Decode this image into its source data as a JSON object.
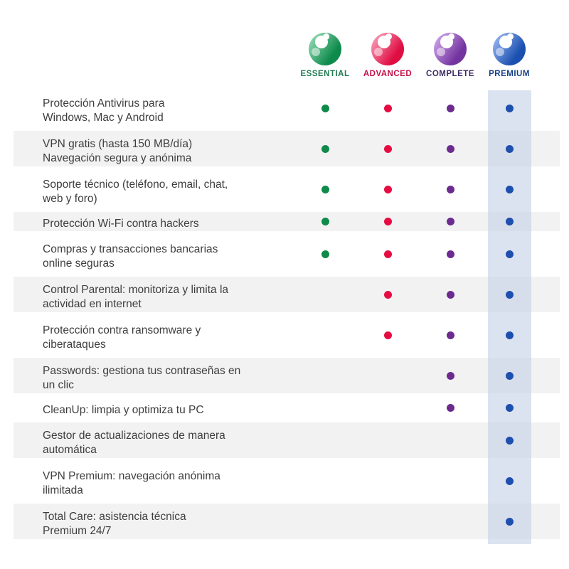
{
  "plans": [
    {
      "name": "ESSENTIAL",
      "label_color": "#237a52",
      "dot_color": "#0f8a4a",
      "logo_light": "#8ad5ac",
      "logo_dark": "#0e8a4c",
      "highlighted": false
    },
    {
      "name": "ADVANCED",
      "label_color": "#c51048",
      "dot_color": "#e60c42",
      "logo_light": "#f695b2",
      "logo_dark": "#e00d42",
      "highlighted": false
    },
    {
      "name": "COMPLETE",
      "label_color": "#3f2b63",
      "dot_color": "#6c2b8f",
      "logo_light": "#c99ee3",
      "logo_dark": "#7434a0",
      "highlighted": false
    },
    {
      "name": "PREMIUM",
      "label_color": "#174086",
      "dot_color": "#1d4fae",
      "logo_light": "#8fb0ec",
      "logo_dark": "#1c50b0",
      "highlighted": true
    }
  ],
  "highlight": {
    "plan": "PREMIUM",
    "band_color": "rgba(195,209,230,0.6)"
  },
  "table": {
    "row_shade_color": "#f2f2f2",
    "text_color": "#3e3e3e",
    "rows": [
      {
        "feature": "Protección Antivirus para\nWindows, Mac y Android",
        "included": [
          true,
          true,
          true,
          true
        ],
        "lines": 2,
        "shaded": false
      },
      {
        "feature": "VPN gratis (hasta 150 MB/día)\nNavegación segura y anónima",
        "included": [
          true,
          true,
          true,
          true
        ],
        "lines": 2,
        "shaded": true
      },
      {
        "feature": "Soporte técnico (teléfono, email, chat,\nweb y foro)",
        "included": [
          true,
          true,
          true,
          true
        ],
        "lines": 2,
        "shaded": false
      },
      {
        "feature": "Protección Wi-Fi contra hackers",
        "included": [
          true,
          true,
          true,
          true
        ],
        "lines": 1,
        "shaded": true
      },
      {
        "feature": "Compras y transacciones bancarias\nonline seguras",
        "included": [
          true,
          true,
          true,
          true
        ],
        "lines": 2,
        "shaded": false
      },
      {
        "feature": "Control Parental: monitoriza y limita la\nactividad en internet",
        "included": [
          false,
          true,
          true,
          true
        ],
        "lines": 2,
        "shaded": true
      },
      {
        "feature": "Protección contra ransomware y\nciberataques",
        "included": [
          false,
          true,
          true,
          true
        ],
        "lines": 2,
        "shaded": false
      },
      {
        "feature": "Passwords: gestiona tus contraseñas en\nun clic",
        "included": [
          false,
          false,
          true,
          true
        ],
        "lines": 2,
        "shaded": true
      },
      {
        "feature": "CleanUp: limpia y optimiza tu PC",
        "included": [
          false,
          false,
          true,
          true
        ],
        "lines": 1,
        "shaded": false
      },
      {
        "feature": "Gestor de actualizaciones de manera\nautomática",
        "included": [
          false,
          false,
          false,
          true
        ],
        "lines": 2,
        "shaded": true
      },
      {
        "feature": "VPN Premium: navegación anónima\nilimitada",
        "included": [
          false,
          false,
          false,
          true
        ],
        "lines": 2,
        "shaded": false
      },
      {
        "feature": "Total Care: asistencia técnica\nPremium 24/7",
        "included": [
          false,
          false,
          false,
          true
        ],
        "lines": 2,
        "shaded": true
      }
    ]
  }
}
